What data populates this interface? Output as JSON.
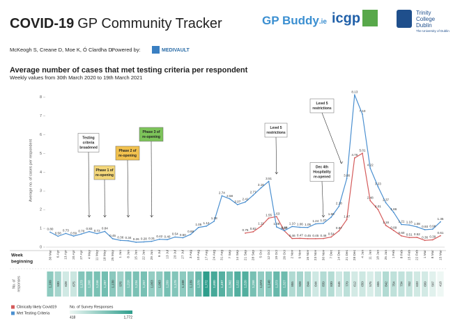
{
  "header": {
    "title_bold": "COVID-19",
    "title_rest": "GP Community Tracker",
    "authors": "McKeogh S, Creane D, Moe K, Ó Clardha D.",
    "powered_by": "Powered by:",
    "sponsor": "MEDIVAULT",
    "logo_gpbuddy": "GP Buddy",
    "logo_gpbuddy_suffix": ".ie",
    "logo_icgp": "icgp",
    "logo_tcd": [
      "Trinity",
      "College",
      "Dublin"
    ],
    "logo_tcd_sub": "The University of Dublin"
  },
  "chart_data": {
    "type": "line",
    "title": "Average number of cases that met testing criteria per respondent",
    "subtitle": "Weekly values from 30th March 2020 to 19th March 2021",
    "y_label": "Average no. of cases per respondent",
    "x_label": [
      "Week",
      "beginning"
    ],
    "categories": [
      "30 Mar",
      "6 Apr",
      "13 Apr",
      "20 Apr",
      "27 Apr",
      "4 May",
      "11 May",
      "18 May",
      "25 May",
      "1 Jun",
      "8 Jun",
      "15 Jun",
      "22 Jun",
      "29 Jun",
      "6 Jul",
      "13 Jul",
      "20 Jul",
      "27 Jul",
      "3 Aug",
      "10 Aug",
      "17 Aug",
      "24 Aug",
      "31 Aug",
      "7 Sep",
      "14 Sep",
      "21 Sep",
      "28 Sep",
      "5 Oct",
      "12 Oct",
      "19 Oct",
      "26 Oct",
      "2 Nov",
      "9 Nov",
      "16 Nov",
      "23 Nov",
      "30 Nov",
      "7 Dec",
      "14 Dec",
      "21 Dec",
      "28 Dec",
      "4 Jan",
      "11 Jan",
      "18 Jan",
      "25 Jan",
      "1 Feb",
      "8 Feb",
      "15 Feb",
      "22 Feb",
      "1 Mar",
      "8 Mar",
      "15 Mar"
    ],
    "series": [
      {
        "name": "Clinically likely Covid19",
        "color": "#d45a5a",
        "values": [
          null,
          null,
          null,
          null,
          null,
          null,
          null,
          null,
          null,
          null,
          null,
          null,
          null,
          null,
          null,
          null,
          null,
          null,
          null,
          null,
          null,
          null,
          null,
          null,
          null,
          0.75,
          0.82,
          1.11,
          1.55,
          1.63,
          0.87,
          0.46,
          0.47,
          0.45,
          0.45,
          0.46,
          0.54,
          0.87,
          1.47,
          4.76,
          5.01,
          2.48,
          2.01,
          1.16,
          0.89,
          0.6,
          0.51,
          0.52,
          0.36,
          0.39,
          0.61
        ],
        "value_labels": [
          null,
          null,
          null,
          null,
          null,
          null,
          null,
          null,
          null,
          null,
          null,
          null,
          null,
          null,
          null,
          null,
          null,
          null,
          null,
          null,
          null,
          null,
          null,
          null,
          null,
          "0.75",
          "0.82",
          "1.11",
          "1.55",
          "1.63",
          "0.87",
          "0.46",
          "0.47",
          "0.45",
          "0.45",
          "0.46",
          "0.54",
          "0.87",
          "1.47",
          "4.76",
          "5.01",
          "2.48",
          "2.01",
          "1.16",
          "0.89",
          "0.60",
          "0.51",
          "0.52",
          "0.36",
          "0.39",
          "0.61"
        ]
      },
      {
        "name": "Met Testing Criteria",
        "color": "#4a8fd0",
        "values": [
          0.8,
          0.58,
          0.73,
          0.59,
          0.7,
          0.83,
          0.72,
          0.84,
          0.45,
          0.36,
          0.34,
          0.26,
          0.28,
          0.31,
          0.42,
          0.4,
          0.54,
          0.5,
          0.68,
          1.05,
          1.12,
          1.38,
          2.74,
          2.58,
          2.27,
          2.41,
          2.77,
          3.16,
          3.51,
          1.08,
          0.88,
          1.1,
          1.06,
          1.05,
          1.24,
          1.27,
          1.6,
          2.18,
          3.66,
          8.13,
          7.1,
          4.22,
          3.23,
          2.37,
          1.86,
          1.21,
          1.18,
          1.08,
          0.93,
          0.96,
          1.35
        ],
        "value_labels": [
          "0.80",
          "0.58",
          "0.73",
          "0.59",
          "0.70",
          "0.83",
          "0.72",
          "0.84",
          "0.45",
          "0.36",
          "0.34",
          "0.26",
          "0.28",
          "0.31",
          "0.42",
          "0.40",
          "0.54",
          "0.50",
          "0.68",
          "1.05",
          "1.12",
          "1.38",
          "2.74",
          "2.58",
          "2.27",
          "2.41",
          "2.77",
          "3.16",
          "3.51",
          "1.08",
          "0.88",
          "1.10",
          "1.06",
          "1.05",
          "1.24",
          "1.27",
          "1.60",
          "2.18",
          "3.66",
          "8.13",
          "7.10",
          "4.22",
          "3.23",
          "2.37",
          "1.86",
          "1.21",
          "1.18",
          "1.08",
          "0.93",
          "0.96",
          "1.35"
        ]
      }
    ],
    "ylim": [
      0,
      8.4
    ],
    "yticks": [
      0,
      1,
      2,
      3,
      4,
      5,
      6,
      7,
      8
    ],
    "annotations": [
      {
        "category": "4 May",
        "lines": [
          "Testing",
          "criteria",
          "broadened"
        ]
      },
      {
        "category": "18 May",
        "lines": [
          "Phase 1 of",
          "re-opening"
        ]
      },
      {
        "category": "8 Jun",
        "lines": [
          "Phase 2 of",
          "re-opening"
        ]
      },
      {
        "category": "29 Jun",
        "lines": [
          "Phase 3 of",
          "re-opening"
        ]
      },
      {
        "category": "19 Oct",
        "lines": [
          "Level 5",
          "restrictions"
        ]
      },
      {
        "category": "30 Nov",
        "lines": [
          "Dec 4th",
          "Hospitality",
          "re-opened"
        ]
      },
      {
        "category": "21 Dec",
        "lines": [
          "Level 5",
          "restrictions"
        ]
      }
    ],
    "responses": {
      "label": [
        "No. of",
        "responses"
      ],
      "legend": "No. of Survey Responses",
      "values": [
        1109,
        930,
        628,
        675,
        1173,
        1208,
        1246,
        1287,
        1130,
        976,
        1210,
        1234,
        1257,
        1053,
        1083,
        1269,
        1179,
        1108,
        1139,
        1370,
        1772,
        1600,
        1497,
        1302,
        1522,
        1520,
        1258,
        1073,
        1140,
        1373,
        1327,
        855,
        928,
        844,
        644,
        839,
        830,
        645,
        770,
        612,
        650,
        575,
        655,
        842,
        754,
        734,
        702,
        633,
        609,
        507,
        418
      ],
      "value_labels": [
        "1,109",
        "930",
        "628",
        "675",
        "1,173",
        "1,208",
        "1,246",
        "1,287",
        "1,130",
        "976",
        "1,210",
        "1,234",
        "1,257",
        "1,053",
        "1,083",
        "1,269",
        "1,179",
        "1,108",
        "1,139",
        "1,370",
        "1,772",
        "1,600",
        "1,497",
        "1,302",
        "1,522",
        "1,520",
        "1,258",
        "1,073",
        "1,140",
        "1,373",
        "1,327",
        "855",
        "928",
        "844",
        "644",
        "839",
        "830",
        "645",
        "770",
        "612",
        "650",
        "575",
        "655",
        "842",
        "754",
        "734",
        "702",
        "633",
        "609",
        "507",
        "418"
      ],
      "scale": [
        {
          "value": 418,
          "label": "418"
        },
        {
          "value": 1772,
          "label": "1,772"
        }
      ]
    }
  }
}
